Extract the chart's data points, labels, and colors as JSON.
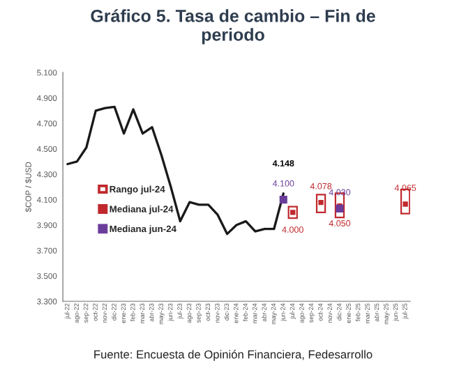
{
  "chart_data": {
    "type": "line",
    "title": "Gráfico 5. Tasa de cambio – Fin de periodo",
    "ylabel": "$COP / $USD",
    "categories": [
      "jul-22",
      "ago-22",
      "sep-22",
      "oct-22",
      "nov-22",
      "dic-22",
      "ene-23",
      "feb-23",
      "mar-23",
      "abr-23",
      "may-23",
      "jun-23",
      "jul-23",
      "ago-23",
      "sep-23",
      "oct-23",
      "nov-23",
      "dic-23",
      "ene-24",
      "feb-24",
      "mar-24",
      "abr-24",
      "may-24",
      "jun-24",
      "jul-24",
      "ago-24",
      "sep-24",
      "oct-24",
      "nov-24",
      "dic-24",
      "ene-25",
      "feb-25",
      "mar-25",
      "abr-25",
      "may-25",
      "jun-25",
      "jul-25"
    ],
    "series": [
      {
        "color": "#1a1a1a",
        "values": [
          4380,
          4400,
          4510,
          4800,
          4820,
          4830,
          4620,
          4810,
          4620,
          4670,
          4450,
          4200,
          3930,
          4080,
          4060,
          4060,
          3980,
          3830,
          3900,
          3930,
          3850,
          3870,
          3870,
          4148,
          null,
          null,
          null,
          null,
          null,
          null,
          null,
          null,
          null,
          null,
          null,
          null,
          null
        ],
        "value_labels": [
          null,
          null,
          null,
          null,
          null,
          null,
          null,
          null,
          null,
          null,
          null,
          null,
          null,
          null,
          null,
          null,
          null,
          null,
          null,
          null,
          null,
          null,
          null,
          "4.148",
          null,
          null,
          null,
          null,
          null,
          null,
          null,
          null,
          null,
          null,
          null,
          null,
          null
        ]
      },
      {
        "type": "bar",
        "name": "Rango jul-24",
        "color": "#c0282d",
        "values": [
          null,
          null,
          null,
          null,
          null,
          null,
          null,
          null,
          null,
          null,
          null,
          null,
          null,
          null,
          null,
          null,
          null,
          null,
          null,
          null,
          null,
          null,
          null,
          null,
          90,
          null,
          null,
          140,
          null,
          190,
          null,
          null,
          null,
          null,
          null,
          null,
          190
        ],
        "base": [
          null,
          null,
          null,
          null,
          null,
          null,
          null,
          null,
          null,
          null,
          null,
          null,
          null,
          null,
          null,
          null,
          null,
          null,
          null,
          null,
          null,
          null,
          null,
          null,
          3955,
          null,
          null,
          4000,
          null,
          3960,
          null,
          null,
          null,
          null,
          null,
          null,
          3990
        ]
      },
      {
        "type": "scatter",
        "name": "Mediana jul-24",
        "color": "#c0282d",
        "marker": "square",
        "values": [
          null,
          null,
          null,
          null,
          null,
          null,
          null,
          null,
          null,
          null,
          null,
          null,
          null,
          null,
          null,
          null,
          null,
          null,
          null,
          null,
          null,
          null,
          null,
          null,
          4000,
          null,
          null,
          4078,
          null,
          4050,
          null,
          null,
          null,
          null,
          null,
          null,
          4065
        ],
        "value_labels": [
          null,
          null,
          null,
          null,
          null,
          null,
          null,
          null,
          null,
          null,
          null,
          null,
          null,
          null,
          null,
          null,
          null,
          null,
          null,
          null,
          null,
          null,
          null,
          null,
          "4.000",
          null,
          null,
          "4.078",
          null,
          "4.050",
          null,
          null,
          null,
          null,
          null,
          null,
          "4.065"
        ]
      },
      {
        "type": "scatter",
        "name": "Mediana jun-24",
        "color": "#6a3d9a",
        "marker": "square",
        "values": [
          null,
          null,
          null,
          null,
          null,
          null,
          null,
          null,
          null,
          null,
          null,
          null,
          null,
          null,
          null,
          null,
          null,
          null,
          null,
          null,
          null,
          null,
          null,
          4100,
          null,
          null,
          null,
          null,
          null,
          4030,
          null,
          null,
          null,
          null,
          null,
          null,
          null
        ],
        "value_labels": [
          null,
          null,
          null,
          null,
          null,
          null,
          null,
          null,
          null,
          null,
          null,
          null,
          null,
          null,
          null,
          null,
          null,
          null,
          null,
          null,
          null,
          null,
          null,
          "4.100",
          null,
          null,
          null,
          null,
          null,
          "4.030",
          null,
          null,
          null,
          null,
          null,
          null,
          null
        ]
      }
    ],
    "ylim": [
      3300,
      5100
    ],
    "yticks": [
      {
        "value": 3300,
        "label": "3.300"
      },
      {
        "value": 3500,
        "label": "3.500"
      },
      {
        "value": 3700,
        "label": "3.700"
      },
      {
        "value": 3900,
        "label": "3.900"
      },
      {
        "value": 4100,
        "label": "4.100"
      },
      {
        "value": 4300,
        "label": "4.300"
      },
      {
        "value": 4500,
        "label": "4.500"
      },
      {
        "value": 4700,
        "label": "4.700"
      },
      {
        "value": 4900,
        "label": "4.900"
      },
      {
        "value": 5100,
        "label": "5.100"
      }
    ],
    "legend": "left",
    "grid": false,
    "annotations": [
      "Fuente: Encuesta de Opinión Financiera, Fedesarrollo"
    ]
  }
}
